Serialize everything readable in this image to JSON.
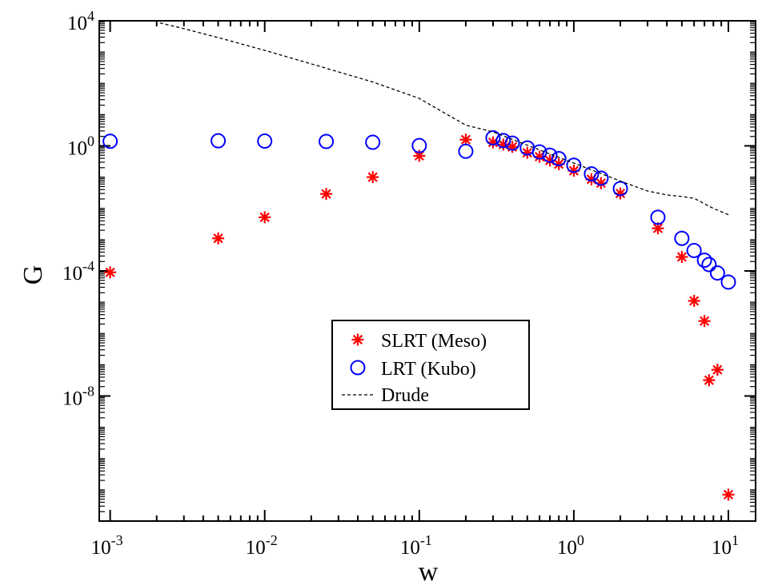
{
  "chart_data": {
    "type": "scatter",
    "xlabel": "w",
    "ylabel": "G",
    "xscale": "log",
    "yscale": "log",
    "xlim": [
      0.00085,
      15
    ],
    "ylim": [
      1e-12,
      10000
    ],
    "x_ticks": [
      {
        "value": 0.001,
        "base": "10",
        "exp": "-3"
      },
      {
        "value": 0.01,
        "base": "10",
        "exp": "-2"
      },
      {
        "value": 0.1,
        "base": "10",
        "exp": "-1"
      },
      {
        "value": 1,
        "base": "10",
        "exp": "0"
      },
      {
        "value": 10,
        "base": "10",
        "exp": "1"
      }
    ],
    "y_ticks": [
      {
        "value": 10000,
        "base": "10",
        "exp": "4"
      },
      {
        "value": 1,
        "base": "10",
        "exp": "0"
      },
      {
        "value": 0.0001,
        "base": "10",
        "exp": "-4"
      },
      {
        "value": 1e-08,
        "base": "10",
        "exp": "-8"
      }
    ],
    "legend_position": "center",
    "grid": false,
    "series": [
      {
        "name": "SLRT (Meso)",
        "marker": "asterisk",
        "color": "#ff0000",
        "x": [
          0.001,
          0.005,
          0.01,
          0.025,
          0.05,
          0.1,
          0.2,
          0.3,
          0.35,
          0.4,
          0.5,
          0.6,
          0.7,
          0.8,
          1.0,
          1.3,
          1.5,
          2.0,
          3.5,
          5.0,
          6.0,
          7.0,
          7.5,
          8.5,
          10.0
        ],
        "y": [
          9e-05,
          0.0011,
          0.0052,
          0.029,
          0.1,
          0.48,
          1.58,
          1.29,
          1.1,
          0.93,
          0.6,
          0.45,
          0.34,
          0.26,
          0.16,
          0.085,
          0.064,
          0.03,
          0.0023,
          0.00028,
          1.1e-05,
          2.5e-06,
          3.2e-08,
          6.9e-08,
          7e-12
        ]
      },
      {
        "name": "LRT (Kubo)",
        "marker": "open-circle",
        "color": "#0000ff",
        "x": [
          0.001,
          0.005,
          0.01,
          0.025,
          0.05,
          0.1,
          0.2,
          0.3,
          0.35,
          0.4,
          0.5,
          0.6,
          0.7,
          0.8,
          1.0,
          1.3,
          1.5,
          2.0,
          3.5,
          5.0,
          6.0,
          7.0,
          7.5,
          8.5,
          10.0
        ],
        "y": [
          1.4,
          1.45,
          1.42,
          1.38,
          1.3,
          1.02,
          0.67,
          1.8,
          1.48,
          1.22,
          0.86,
          0.64,
          0.5,
          0.39,
          0.24,
          0.127,
          0.093,
          0.043,
          0.0052,
          0.0011,
          0.00045,
          0.00022,
          0.00016,
          8.6e-05,
          4.4e-05
        ]
      },
      {
        "name": "Drude",
        "marker": "dashed-line",
        "color": "#000000",
        "x": [
          0.0021,
          0.003,
          0.005,
          0.01,
          0.02,
          0.05,
          0.1,
          0.2,
          0.3,
          0.5,
          1.0,
          2.0,
          3.0,
          4.0,
          5.0,
          6.0,
          7.0,
          8.0,
          10.0
        ],
        "y": [
          8600,
          5600,
          2900,
          1130,
          420,
          110,
          33,
          4.6,
          2.8,
          1.05,
          0.28,
          0.075,
          0.036,
          0.027,
          0.024,
          0.021,
          0.014,
          0.01,
          0.0063
        ]
      }
    ]
  }
}
